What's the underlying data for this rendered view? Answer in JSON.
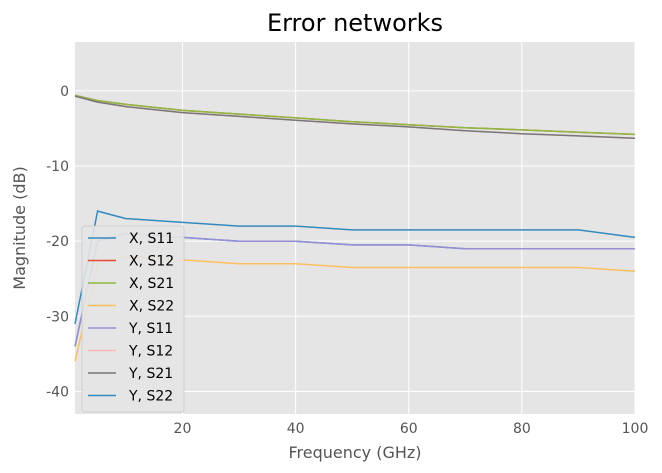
{
  "chart_data": {
    "type": "line",
    "title": "Error networks",
    "xlabel": "Frequency (GHz)",
    "ylabel": "Magnitude (dB)",
    "xlim": [
      1,
      100
    ],
    "ylim": [
      -43,
      6.5
    ],
    "x_ticks": [
      20,
      40,
      60,
      80,
      100
    ],
    "y_ticks": [
      0,
      -10,
      -20,
      -30,
      -40
    ],
    "grid": true,
    "legend_position": "lower-left",
    "background_color": "#e5e5e5",
    "grid_color": "#ffffff",
    "x": [
      1,
      5,
      10,
      20,
      30,
      40,
      50,
      60,
      70,
      80,
      90,
      100
    ],
    "series": [
      {
        "name": "X, S11",
        "color": "#348abd",
        "values": [
          -34,
          -20,
          -19,
          -19.5,
          -20,
          -20,
          -20.5,
          -20.5,
          -21,
          -21,
          -21,
          -21
        ]
      },
      {
        "name": "X, S12",
        "color": "#e24a33",
        "values": [
          -0.6,
          -1.3,
          -1.8,
          -2.6,
          -3.1,
          -3.6,
          -4.1,
          -4.5,
          -4.9,
          -5.2,
          -5.5,
          -5.8
        ]
      },
      {
        "name": "X, S21",
        "color": "#8eba42",
        "values": [
          -0.6,
          -1.3,
          -1.8,
          -2.6,
          -3.1,
          -3.6,
          -4.1,
          -4.5,
          -4.9,
          -5.2,
          -5.5,
          -5.8
        ]
      },
      {
        "name": "X, S22",
        "color": "#fbc15e",
        "values": [
          -36,
          -23,
          -22,
          -22.5,
          -23,
          -23,
          -23.5,
          -23.5,
          -23.5,
          -23.5,
          -23.5,
          -24
        ]
      },
      {
        "name": "Y, S11",
        "color": "#988ed5",
        "values": [
          -34,
          -20,
          -19,
          -19.5,
          -20,
          -20,
          -20.5,
          -20.5,
          -21,
          -21,
          -21,
          -21
        ]
      },
      {
        "name": "Y, S12",
        "color": "#ffb5b8",
        "values": [
          -0.7,
          -1.5,
          -2.1,
          -2.9,
          -3.4,
          -3.9,
          -4.4,
          -4.8,
          -5.3,
          -5.7,
          -6.0,
          -6.3
        ]
      },
      {
        "name": "Y, S21",
        "color": "#777777",
        "values": [
          -0.7,
          -1.5,
          -2.1,
          -2.9,
          -3.4,
          -3.9,
          -4.4,
          -4.8,
          -5.3,
          -5.7,
          -6.0,
          -6.3
        ]
      },
      {
        "name": "Y, S22",
        "color": "#348abd",
        "values": [
          -31,
          -16,
          -17,
          -17.5,
          -18,
          -18,
          -18.5,
          -18.5,
          -18.5,
          -18.5,
          -18.5,
          -19.5
        ]
      }
    ]
  }
}
